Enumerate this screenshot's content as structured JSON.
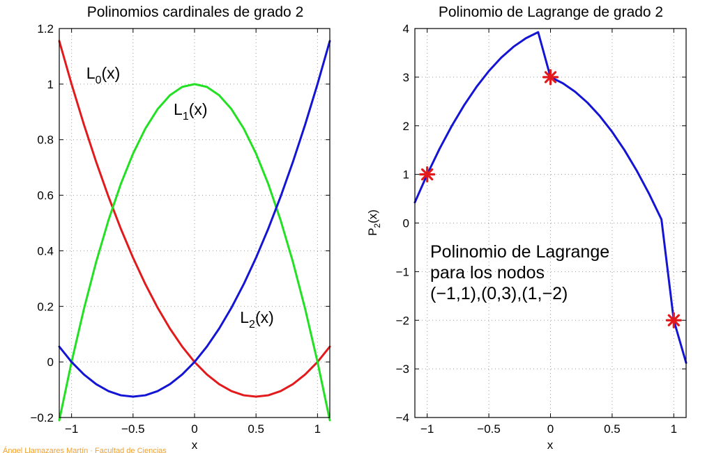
{
  "chart_data": [
    {
      "type": "line",
      "title": "Polinomios cardinales de grado 2",
      "xlabel": "x",
      "ylabel": "",
      "xlim": [
        -1.1,
        1.1
      ],
      "ylim": [
        -0.2,
        1.2
      ],
      "grid": true,
      "xticks": [
        -1,
        -0.5,
        0,
        0.5,
        1
      ],
      "xtick_labels": [
        "−1",
        "−0.5",
        "0",
        "0.5",
        "1"
      ],
      "yticks": [
        -0.2,
        0,
        0.2,
        0.4,
        0.6,
        0.8,
        1,
        1.2
      ],
      "ytick_labels": [
        "−0.2",
        "0",
        "0.2",
        "0.4",
        "0.6",
        "0.8",
        "1",
        "1.2"
      ],
      "series": [
        {
          "name": "L0(x)",
          "color": "#e31a1c",
          "x": [
            -1.1,
            -1.0,
            -0.9,
            -0.8,
            -0.7,
            -0.6,
            -0.5,
            -0.4,
            -0.3,
            -0.2,
            -0.1,
            0.0,
            0.1,
            0.2,
            0.3,
            0.4,
            0.5,
            0.6,
            0.7,
            0.8,
            0.9,
            1.0,
            1.1
          ],
          "values": [
            1.155,
            1.0,
            0.855,
            0.72,
            0.595,
            0.48,
            0.375,
            0.28,
            0.195,
            0.12,
            0.055,
            0.0,
            -0.045,
            -0.08,
            -0.105,
            -0.12,
            -0.125,
            -0.12,
            -0.105,
            -0.08,
            -0.045,
            0.0,
            0.055
          ]
        },
        {
          "name": "L1(x)",
          "color": "#22e022",
          "x": [
            -1.1,
            -1.0,
            -0.9,
            -0.8,
            -0.7,
            -0.6,
            -0.5,
            -0.4,
            -0.3,
            -0.2,
            -0.1,
            0.0,
            0.1,
            0.2,
            0.3,
            0.4,
            0.5,
            0.6,
            0.7,
            0.8,
            0.9,
            1.0,
            1.1
          ],
          "values": [
            -0.21,
            0.0,
            0.19,
            0.36,
            0.51,
            0.64,
            0.75,
            0.84,
            0.91,
            0.96,
            0.99,
            1.0,
            0.99,
            0.96,
            0.91,
            0.84,
            0.75,
            0.64,
            0.51,
            0.36,
            0.19,
            0.0,
            -0.21
          ]
        },
        {
          "name": "L2(x)",
          "color": "#1414d4",
          "x": [
            -1.1,
            -1.0,
            -0.9,
            -0.8,
            -0.7,
            -0.6,
            -0.5,
            -0.4,
            -0.3,
            -0.2,
            -0.1,
            0.0,
            0.1,
            0.2,
            0.3,
            0.4,
            0.5,
            0.6,
            0.7,
            0.8,
            0.9,
            1.0,
            1.1
          ],
          "values": [
            0.055,
            0.0,
            -0.045,
            -0.08,
            -0.105,
            -0.12,
            -0.125,
            -0.12,
            -0.105,
            -0.08,
            -0.045,
            0.0,
            0.055,
            0.12,
            0.195,
            0.28,
            0.375,
            0.48,
            0.595,
            0.72,
            0.855,
            1.0,
            1.155
          ]
        }
      ],
      "annotations": [
        {
          "base": "L",
          "sub": "0",
          "rest": "(x)",
          "x": -0.88,
          "y": 1.02
        },
        {
          "base": "L",
          "sub": "1",
          "rest": "(x)",
          "x": -0.17,
          "y": 0.89
        },
        {
          "base": "L",
          "sub": "2",
          "rest": "(x)",
          "x": 0.37,
          "y": 0.14
        }
      ]
    },
    {
      "type": "line",
      "title": "Polinomio de Lagrange de grado 2",
      "xlabel": "x",
      "ylabel_base": "P",
      "ylabel_sub": "2",
      "ylabel_rest": "(x)",
      "xlim": [
        -1.1,
        1.1
      ],
      "ylim": [
        -4,
        4
      ],
      "grid": true,
      "xticks": [
        -1,
        -0.5,
        0,
        0.5,
        1
      ],
      "xtick_labels": [
        "−1",
        "−0.5",
        "0",
        "0.5",
        "1"
      ],
      "yticks": [
        -4,
        -3,
        -2,
        -1,
        0,
        1,
        2,
        3,
        4
      ],
      "ytick_labels": [
        "−4",
        "−3",
        "−2",
        "−1",
        "0",
        "1",
        "2",
        "3",
        "4"
      ],
      "series": [
        {
          "name": "P2(x)",
          "color": "#1414d4",
          "x": [
            -1.1,
            -1.0,
            -0.9,
            -0.8,
            -0.7,
            -0.6,
            -0.5,
            -0.4,
            -0.3,
            -0.2,
            -0.1,
            0.0,
            0.1,
            0.2,
            0.3,
            0.4,
            0.5,
            0.6,
            0.7,
            0.8,
            0.9,
            1.0,
            1.1
          ],
          "values": [
            0.425,
            1.0,
            1.525,
            2.0,
            2.425,
            2.8,
            3.125,
            3.4,
            3.625,
            3.8,
            3.925,
            3.0,
            2.875,
            2.7,
            2.475,
            2.2,
            1.875,
            1.5,
            1.075,
            0.6,
            0.075,
            -2.0,
            -2.875
          ]
        }
      ],
      "markers": {
        "color": "#e31a1c",
        "x": [
          -1,
          0,
          1
        ],
        "values": [
          1,
          3,
          -2
        ]
      },
      "annotation_lines": [
        "Polinomio de Lagrange",
        "para los nodos",
        "(−1,1),(0,3),(1,−2)"
      ]
    }
  ],
  "footer_text": "Ángel Llamazares Martín · Facultad de Ciencias"
}
